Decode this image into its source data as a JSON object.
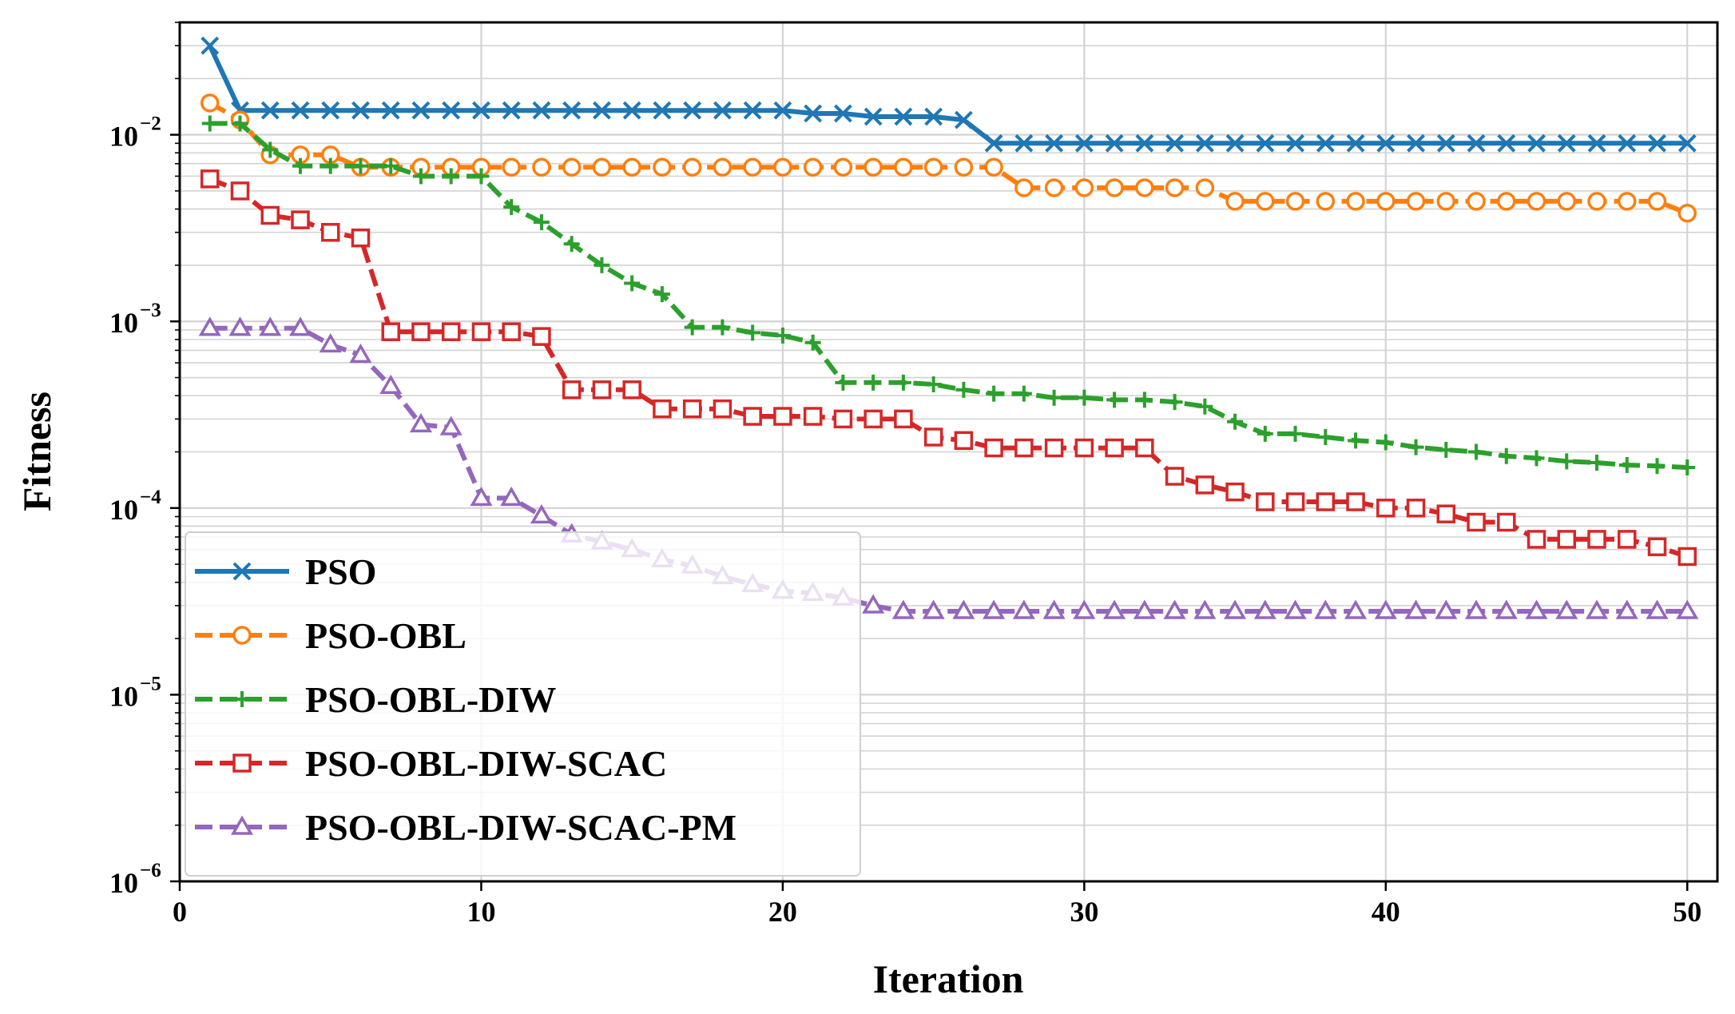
{
  "chart_data": {
    "type": "line",
    "title": "",
    "xlabel": "Iteration",
    "ylabel": "Fitness",
    "yscale": "log",
    "xlim": [
      0,
      51
    ],
    "ylim": [
      1e-06,
      0.04
    ],
    "grid": true,
    "legend_position": "lower-left",
    "x_ticks": [
      0,
      10,
      20,
      30,
      40,
      50
    ],
    "x_tick_labels": [
      "0",
      "10",
      "20",
      "30",
      "40",
      "50"
    ],
    "y_ticks": [
      1e-06,
      1e-05,
      0.0001,
      0.001,
      0.01
    ],
    "y_tick_labels": [
      {
        "base": "10",
        "exp": "−6"
      },
      {
        "base": "10",
        "exp": "−5"
      },
      {
        "base": "10",
        "exp": "−4"
      },
      {
        "base": "10",
        "exp": "−3"
      },
      {
        "base": "10",
        "exp": "−2"
      }
    ],
    "x": [
      1,
      2,
      3,
      4,
      5,
      6,
      7,
      8,
      9,
      10,
      11,
      12,
      13,
      14,
      15,
      16,
      17,
      18,
      19,
      20,
      21,
      22,
      23,
      24,
      25,
      26,
      27,
      28,
      29,
      30,
      31,
      32,
      33,
      34,
      35,
      36,
      37,
      38,
      39,
      40,
      41,
      42,
      43,
      44,
      45,
      46,
      47,
      48,
      49,
      50
    ],
    "series": [
      {
        "name": "PSO",
        "color": "#1f77b4",
        "marker": "x",
        "dashed": false,
        "values": [
          0.03,
          0.0135,
          0.0135,
          0.0135,
          0.0135,
          0.0135,
          0.0135,
          0.0135,
          0.0135,
          0.0135,
          0.0135,
          0.0135,
          0.0135,
          0.0135,
          0.0135,
          0.0135,
          0.0135,
          0.0135,
          0.0135,
          0.0135,
          0.013,
          0.013,
          0.0125,
          0.0125,
          0.0125,
          0.012,
          0.009,
          0.009,
          0.009,
          0.009,
          0.009,
          0.009,
          0.009,
          0.009,
          0.009,
          0.009,
          0.009,
          0.009,
          0.009,
          0.009,
          0.009,
          0.009,
          0.009,
          0.009,
          0.009,
          0.009,
          0.009,
          0.009,
          0.009,
          0.009
        ]
      },
      {
        "name": "PSO-OBL",
        "color": "#ff7f0e",
        "marker": "circle",
        "dashed": true,
        "values": [
          0.0148,
          0.012,
          0.0078,
          0.0078,
          0.0078,
          0.0067,
          0.0067,
          0.0067,
          0.0067,
          0.0067,
          0.0067,
          0.0067,
          0.0067,
          0.0067,
          0.0067,
          0.0067,
          0.0067,
          0.0067,
          0.0067,
          0.0067,
          0.0067,
          0.0067,
          0.0067,
          0.0067,
          0.0067,
          0.0067,
          0.0067,
          0.0052,
          0.0052,
          0.0052,
          0.0052,
          0.0052,
          0.0052,
          0.0052,
          0.0044,
          0.0044,
          0.0044,
          0.0044,
          0.0044,
          0.0044,
          0.0044,
          0.0044,
          0.0044,
          0.0044,
          0.0044,
          0.0044,
          0.0044,
          0.0044,
          0.0044,
          0.0038
        ]
      },
      {
        "name": "PSO-OBL-DIW",
        "color": "#2ca02c",
        "marker": "plus",
        "dashed": true,
        "values": [
          0.0115,
          0.0115,
          0.0083,
          0.0068,
          0.0068,
          0.0068,
          0.0068,
          0.006,
          0.006,
          0.006,
          0.0041,
          0.0034,
          0.0026,
          0.002,
          0.0016,
          0.0014,
          0.00093,
          0.00093,
          0.00087,
          0.00084,
          0.00077,
          0.00047,
          0.00047,
          0.00047,
          0.00046,
          0.00043,
          0.00041,
          0.00041,
          0.00039,
          0.00039,
          0.00038,
          0.00038,
          0.00037,
          0.00035,
          0.00029,
          0.00025,
          0.00025,
          0.00024,
          0.00023,
          0.000225,
          0.000212,
          0.000205,
          0.0002,
          0.00019,
          0.000185,
          0.000178,
          0.000175,
          0.00017,
          0.000168,
          0.000165
        ]
      },
      {
        "name": "PSO-OBL-DIW-SCAC",
        "color": "#d62728",
        "marker": "square",
        "dashed": true,
        "values": [
          0.0058,
          0.005,
          0.0037,
          0.0035,
          0.003,
          0.0028,
          0.00088,
          0.00088,
          0.00088,
          0.00088,
          0.00088,
          0.00083,
          0.00043,
          0.00043,
          0.00043,
          0.00034,
          0.00034,
          0.00034,
          0.00031,
          0.00031,
          0.00031,
          0.0003,
          0.0003,
          0.0003,
          0.00024,
          0.00023,
          0.00021,
          0.00021,
          0.00021,
          0.00021,
          0.00021,
          0.00021,
          0.000148,
          0.000133,
          0.000122,
          0.000108,
          0.000108,
          0.000108,
          0.000108,
          0.0001,
          0.0001,
          9.3e-05,
          8.4e-05,
          8.4e-05,
          6.8e-05,
          6.8e-05,
          6.8e-05,
          6.8e-05,
          6.2e-05,
          5.5e-05
        ]
      },
      {
        "name": "PSO-OBL-DIW-SCAC-PM",
        "color": "#9467bd",
        "marker": "triangle",
        "dashed": true,
        "values": [
          0.00092,
          0.00092,
          0.00092,
          0.00092,
          0.00075,
          0.00066,
          0.00045,
          0.00028,
          0.00027,
          0.000113,
          0.000113,
          9.1e-05,
          7.2e-05,
          6.6e-05,
          6e-05,
          5.3e-05,
          4.9e-05,
          4.3e-05,
          3.9e-05,
          3.6e-05,
          3.5e-05,
          3.3e-05,
          3e-05,
          2.8e-05,
          2.8e-05,
          2.8e-05,
          2.8e-05,
          2.8e-05,
          2.8e-05,
          2.8e-05,
          2.8e-05,
          2.8e-05,
          2.8e-05,
          2.8e-05,
          2.8e-05,
          2.8e-05,
          2.8e-05,
          2.8e-05,
          2.8e-05,
          2.8e-05,
          2.8e-05,
          2.8e-05,
          2.8e-05,
          2.8e-05,
          2.8e-05,
          2.8e-05,
          2.8e-05,
          2.8e-05,
          2.8e-05,
          2.8e-05
        ]
      }
    ]
  }
}
